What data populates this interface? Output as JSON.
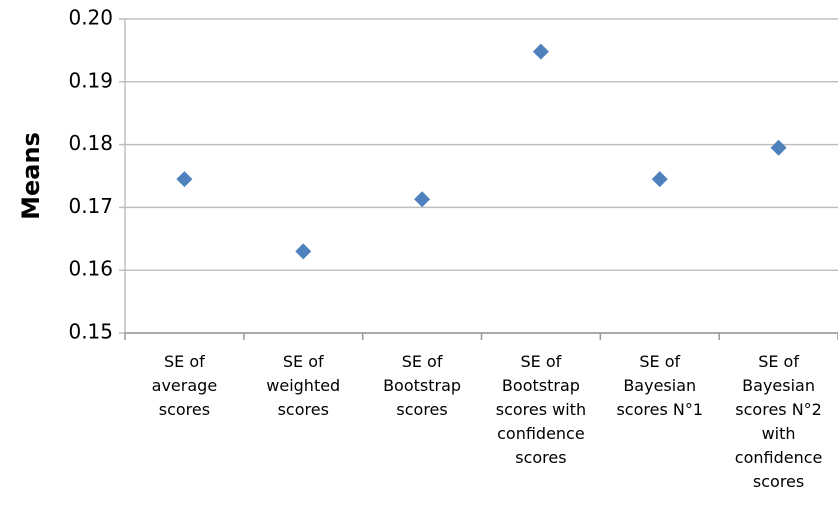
{
  "chart_data": {
    "type": "scatter",
    "y_label": "Means",
    "categories": [
      "SE of\naverage\nscores",
      "SE of\nweighted\nscores",
      "SE of\nBootstrap\nscores",
      "SE of\nBootstrap\nscores with\nconfidence\nscores",
      "SE of\nBayesian\nscores  N°1",
      "SE of\nBayesian\nscores N°2\nwith\nconfidence\nscores"
    ],
    "values": [
      0.1745,
      0.163,
      0.1713,
      0.1948,
      0.1745,
      0.1795
    ],
    "color": "#4f81bd",
    "ylim": [
      0.15,
      0.2
    ],
    "yticks": [
      0.15,
      0.16,
      0.17,
      0.18,
      0.19,
      {
        "value": 0.2,
        "label": "0.20"
      }
    ],
    "grid": true
  }
}
